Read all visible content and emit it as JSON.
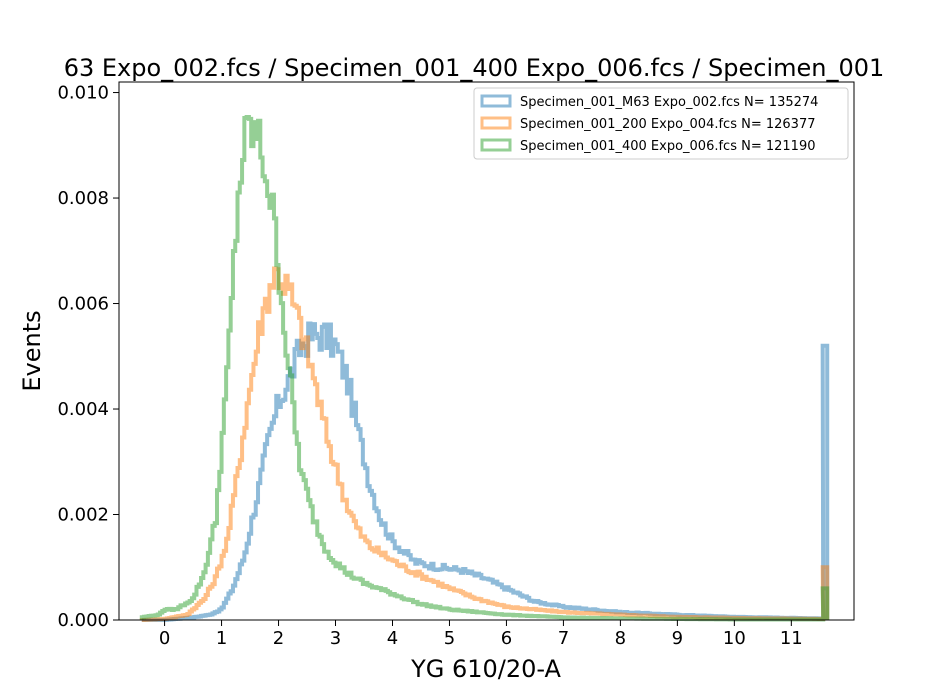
{
  "chart_data": {
    "type": "histogram-step",
    "title": "63 Expo_002.fcs / Specimen_001_400 Expo_006.fcs / Specimen_001",
    "xlabel": "YG 610/20-A",
    "ylabel": "Events",
    "xlim": [
      -0.8,
      12.1
    ],
    "ylim": [
      0,
      0.0102
    ],
    "x_ticks": [
      0,
      1,
      2,
      3,
      4,
      5,
      6,
      7,
      8,
      9,
      10,
      11
    ],
    "y_ticks": [
      0,
      0.002,
      0.004,
      0.006,
      0.008,
      0.01
    ],
    "y_tick_labels": [
      "0.000",
      "0.002",
      "0.004",
      "0.006",
      "0.008",
      "0.010"
    ],
    "legend_position": "upper-right",
    "series": [
      {
        "name": "Specimen_001_M63 Expo_002.fcs  N= 135274",
        "color": "#1f77b4",
        "points": [
          [
            -0.4,
            0
          ],
          [
            0,
            0
          ],
          [
            0.5,
            5e-05
          ],
          [
            0.8,
            0.0001
          ],
          [
            1.0,
            0.0002
          ],
          [
            1.2,
            0.0006
          ],
          [
            1.4,
            0.0012
          ],
          [
            1.6,
            0.0022
          ],
          [
            1.8,
            0.0033
          ],
          [
            2.0,
            0.0041
          ],
          [
            2.2,
            0.0046
          ],
          [
            2.4,
            0.0052
          ],
          [
            2.6,
            0.0054
          ],
          [
            2.8,
            0.0054
          ],
          [
            3.0,
            0.0052
          ],
          [
            3.2,
            0.0046
          ],
          [
            3.4,
            0.0036
          ],
          [
            3.6,
            0.0026
          ],
          [
            3.8,
            0.0019
          ],
          [
            4.0,
            0.0015
          ],
          [
            4.4,
            0.0011
          ],
          [
            4.8,
            0.001
          ],
          [
            5.2,
            0.00095
          ],
          [
            5.6,
            0.0008
          ],
          [
            6.0,
            0.0006
          ],
          [
            6.5,
            0.00035
          ],
          [
            7.0,
            0.00025
          ],
          [
            8.0,
            0.00015
          ],
          [
            9.0,
            0.0001
          ],
          [
            10.0,
            6e-05
          ],
          [
            11.0,
            4e-05
          ],
          [
            11.55,
            3e-05
          ]
        ],
        "end_spike": 0.0052
      },
      {
        "name": "Specimen_001_200 Expo_004.fcs  N= 126377",
        "color": "#ff7f0e",
        "points": [
          [
            -0.4,
            0
          ],
          [
            0,
            2e-05
          ],
          [
            0.4,
            0.0001
          ],
          [
            0.7,
            0.0004
          ],
          [
            0.9,
            0.0008
          ],
          [
            1.1,
            0.0015
          ],
          [
            1.3,
            0.0029
          ],
          [
            1.5,
            0.0044
          ],
          [
            1.7,
            0.0057
          ],
          [
            1.9,
            0.0065
          ],
          [
            2.0,
            0.0066
          ],
          [
            2.2,
            0.0062
          ],
          [
            2.4,
            0.0055
          ],
          [
            2.6,
            0.0047
          ],
          [
            2.8,
            0.0037
          ],
          [
            3.0,
            0.0029
          ],
          [
            3.2,
            0.0022
          ],
          [
            3.4,
            0.0017
          ],
          [
            3.6,
            0.0014
          ],
          [
            3.9,
            0.0012
          ],
          [
            4.2,
            0.001
          ],
          [
            4.6,
            0.0008
          ],
          [
            5.0,
            0.0006
          ],
          [
            5.5,
            0.0004
          ],
          [
            6.0,
            0.00025
          ],
          [
            7.0,
            0.00015
          ],
          [
            8.0,
            0.0001
          ],
          [
            9.0,
            6e-05
          ],
          [
            10.0,
            4e-05
          ],
          [
            11.55,
            2e-05
          ]
        ],
        "end_spike": 0.001
      },
      {
        "name": "Specimen_001_400 Expo_006.fcs  N= 121190",
        "color": "#2ca02c",
        "points": [
          [
            -0.4,
            5e-05
          ],
          [
            -0.1,
            0.0001
          ],
          [
            0.0,
            0.0002
          ],
          [
            0.2,
            0.0002
          ],
          [
            0.5,
            0.0004
          ],
          [
            0.7,
            0.0009
          ],
          [
            0.9,
            0.0019
          ],
          [
            1.1,
            0.0046
          ],
          [
            1.2,
            0.0064
          ],
          [
            1.3,
            0.0081
          ],
          [
            1.4,
            0.009
          ],
          [
            1.5,
            0.0093
          ],
          [
            1.6,
            0.0092
          ],
          [
            1.7,
            0.0089
          ],
          [
            1.8,
            0.0084
          ],
          [
            1.9,
            0.0077
          ],
          [
            2.0,
            0.0068
          ],
          [
            2.1,
            0.0056
          ],
          [
            2.2,
            0.0046
          ],
          [
            2.3,
            0.0036
          ],
          [
            2.4,
            0.0028
          ],
          [
            2.6,
            0.002
          ],
          [
            2.8,
            0.0014
          ],
          [
            3.0,
            0.0011
          ],
          [
            3.2,
            0.0009
          ],
          [
            3.5,
            0.0007
          ],
          [
            4.0,
            0.0005
          ],
          [
            4.5,
            0.0003
          ],
          [
            5.0,
            0.0002
          ],
          [
            6.0,
            0.0001
          ],
          [
            7.0,
            5e-05
          ],
          [
            8.0,
            3e-05
          ],
          [
            9.0,
            2e-05
          ],
          [
            10.0,
            1e-05
          ],
          [
            11.55,
            1e-05
          ]
        ],
        "end_spike": 0.0006
      }
    ]
  }
}
